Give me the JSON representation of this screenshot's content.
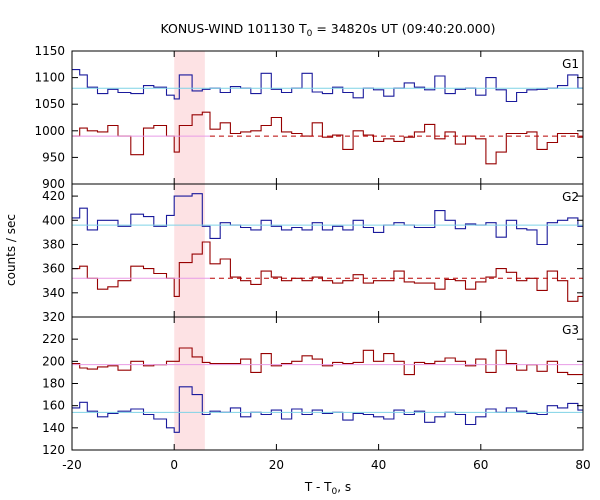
{
  "chart_data": {
    "type": "line",
    "title": "KONUS-WIND 101130 T",
    "title_sub": "0",
    "title_tail": " = 34820s UT (09:40:20.000)",
    "xlabel": "T - T",
    "xlabel_sub": "0",
    "xlabel_tail": ", s",
    "ylabel": "counts / sec",
    "xlim": [
      -20,
      80
    ],
    "x_ticks": [
      -20,
      0,
      20,
      40,
      60,
      80
    ],
    "x_tick_labels": [
      "-20",
      "0",
      "20",
      "40",
      "60",
      "80"
    ],
    "highlight_interval": [
      0,
      6
    ],
    "colors": {
      "blue": "#1a1a9c",
      "red": "#960000",
      "cyan": "#7fd3e6",
      "pink": "#e89be6",
      "dash": "#b80000",
      "band": "#fde2e4"
    },
    "bin_edges": [
      -20,
      -18.5,
      -17,
      -15,
      -13,
      -11,
      -8.5,
      -6,
      -4,
      -1.5,
      0,
      1,
      3.5,
      5.5,
      7,
      9,
      11,
      13,
      15,
      17,
      19,
      21,
      23,
      25,
      27,
      29,
      31,
      33,
      35,
      37,
      39,
      41,
      43,
      45,
      47,
      49,
      51,
      53,
      55,
      57,
      59,
      61,
      63,
      65,
      67,
      69,
      71,
      73,
      75,
      77,
      79,
      80
    ],
    "panels": [
      {
        "label": "G1",
        "ylim": [
          900,
          1150
        ],
        "y_ticks": [
          900,
          950,
          1000,
          1050,
          1100,
          1150
        ],
        "y_tick_labels": [
          "900",
          "950",
          "1000",
          "1050",
          "1100",
          "1150"
        ],
        "show_x_tick_labels": false,
        "series": [
          {
            "color": "blue",
            "values": [
              1115,
              1105,
              1082,
              1070,
              1078,
              1072,
              1070,
              1085,
              1082,
              1067,
              1060,
              1105,
              1075,
              1078,
              1080,
              1072,
              1083,
              1080,
              1070,
              1108,
              1078,
              1072,
              1080,
              1108,
              1073,
              1070,
              1082,
              1072,
              1062,
              1080,
              1077,
              1065,
              1080,
              1090,
              1082,
              1077,
              1103,
              1070,
              1078,
              1080,
              1067,
              1100,
              1077,
              1055,
              1072,
              1077,
              1078,
              1080,
              1085,
              1105,
              1080
            ]
          },
          {
            "color": "red",
            "values": [
              990,
              1005,
              1000,
              998,
              1010,
              990,
              955,
              1005,
              1010,
              990,
              960,
              1010,
              1030,
              1035,
              1003,
              1015,
              995,
              998,
              1000,
              1010,
              1025,
              998,
              995,
              990,
              1015,
              988,
              992,
              965,
              1000,
              992,
              980,
              985,
              980,
              988,
              998,
              1012,
              985,
              998,
              975,
              990,
              985,
              938,
              960,
              995,
              995,
              998,
              965,
              978,
              995,
              995,
              988
            ]
          },
          {
            "color": "cyan",
            "baseline": 1080
          },
          {
            "color": "pink",
            "baseline": 990,
            "dashed_from": 7,
            "dashed_color": "dash"
          }
        ]
      },
      {
        "label": "G2",
        "ylim": [
          320,
          430
        ],
        "y_ticks": [
          320,
          340,
          360,
          380,
          400,
          420
        ],
        "y_tick_labels": [
          "320",
          "340",
          "360",
          "380",
          "400",
          "420"
        ],
        "show_x_tick_labels": false,
        "series": [
          {
            "color": "blue",
            "values": [
              402,
              410,
              392,
              400,
              400,
              395,
              405,
              403,
              395,
              404,
              420,
              420,
              422,
              395,
              385,
              398,
              396,
              394,
              392,
              400,
              395,
              392,
              394,
              392,
              398,
              392,
              395,
              392,
              400,
              394,
              390,
              396,
              398,
              396,
              394,
              394,
              408,
              400,
              393,
              397,
              396,
              398,
              386,
              400,
              393,
              392,
              380,
              398,
              400,
              402,
              395
            ]
          },
          {
            "color": "red",
            "values": [
              360,
              362,
              352,
              343,
              345,
              350,
              362,
              360,
              356,
              352,
              337,
              365,
              372,
              382,
              364,
              368,
              353,
              350,
              347,
              358,
              353,
              350,
              352,
              350,
              353,
              350,
              348,
              350,
              355,
              348,
              350,
              350,
              358,
              349,
              348,
              348,
              343,
              351,
              350,
              343,
              349,
              353,
              360,
              357,
              350,
              352,
              342,
              358,
              350,
              333,
              337
            ]
          },
          {
            "color": "cyan",
            "baseline": 396
          },
          {
            "color": "pink",
            "baseline": 352,
            "dashed_from": 7,
            "dashed_color": "dash"
          }
        ]
      },
      {
        "label": "G3",
        "ylim": [
          120,
          240
        ],
        "y_ticks": [
          120,
          140,
          160,
          180,
          200,
          220
        ],
        "y_tick_labels": [
          "120",
          "140",
          "160",
          "180",
          "200",
          "220"
        ],
        "show_x_tick_labels": true,
        "series": [
          {
            "color": "red",
            "values": [
              198,
              194,
              193,
              195,
              196,
              192,
              200,
              196,
              197,
              200,
              200,
              212,
              204,
              199,
              198,
              198,
              198,
              202,
              190,
              207,
              196,
              198,
              200,
              205,
              202,
              196,
              199,
              198,
              199,
              210,
              200,
              207,
              200,
              188,
              199,
              198,
              200,
              203,
              200,
              196,
              202,
              190,
              210,
              198,
              192,
              197,
              191,
              200,
              190,
              188,
              188
            ]
          },
          {
            "color": "blue",
            "values": [
              158,
              163,
              155,
              150,
              153,
              155,
              157,
              152,
              148,
              140,
              136,
              177,
              170,
              152,
              155,
              154,
              158,
              150,
              154,
              152,
              156,
              148,
              157,
              152,
              156,
              153,
              154,
              147,
              153,
              152,
              150,
              148,
              156,
              152,
              155,
              145,
              150,
              154,
              152,
              143,
              150,
              157,
              154,
              158,
              155,
              153,
              152,
              160,
              158,
              162,
              156
            ]
          },
          {
            "color": "pink",
            "baseline": 197
          },
          {
            "color": "cyan",
            "baseline": 154
          }
        ]
      }
    ]
  }
}
